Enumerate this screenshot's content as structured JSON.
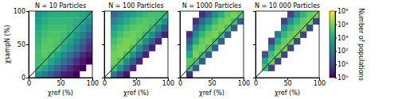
{
  "chart_data": [
    {
      "type": "heatmap",
      "title": "N = 10 Particles",
      "x_label": "χref (%)",
      "y_label": "χsampN (%)",
      "xlim": [
        0,
        100
      ],
      "ylim": [
        0,
        100
      ],
      "xticks": [
        0,
        50,
        100
      ],
      "yticks": [
        0,
        50,
        100
      ],
      "xbins": [
        0,
        10,
        20,
        30,
        40,
        50,
        60,
        70,
        80,
        90,
        100
      ],
      "ybins": [
        0,
        10,
        20,
        30,
        40,
        50,
        60,
        70,
        80,
        90,
        100
      ],
      "cells": [
        [
          null,
          300,
          100,
          30,
          10,
          3,
          2,
          1,
          null,
          null
        ],
        [
          null,
          2000,
          800,
          200,
          50,
          15,
          5,
          2,
          1,
          null
        ],
        [
          null,
          3000,
          3000,
          1000,
          300,
          80,
          20,
          5,
          2,
          1
        ],
        [
          null,
          3000,
          5000,
          3000,
          1000,
          300,
          80,
          20,
          5,
          2
        ],
        [
          null,
          2500,
          5000,
          5000,
          3000,
          1000,
          300,
          80,
          20,
          5
        ],
        [
          null,
          2000,
          4000,
          5000,
          4000,
          2000,
          800,
          200,
          50,
          10
        ],
        [
          null,
          1500,
          3000,
          4000,
          4000,
          3000,
          1500,
          500,
          150,
          30
        ],
        [
          null,
          1000,
          2000,
          3000,
          3000,
          3000,
          2000,
          1000,
          400,
          100
        ],
        [
          null,
          600,
          1200,
          2000,
          2000,
          2000,
          2000,
          1500,
          800,
          300
        ],
        [
          null,
          400,
          800,
          1200,
          1500,
          1500,
          1500,
          1500,
          1000,
          600
        ]
      ]
    },
    {
      "type": "heatmap",
      "title": "N = 100 Particles",
      "x_label": "χref (%)",
      "tick_labels": "x",
      "xlim": [
        0,
        100
      ],
      "ylim": [
        0,
        100
      ],
      "xticks": [
        0,
        50,
        100
      ],
      "yticks": [
        0,
        50,
        100
      ],
      "xbins": [
        0,
        10,
        20,
        30,
        40,
        50,
        60,
        70,
        80,
        90,
        100
      ],
      "ybins": [
        0,
        10,
        20,
        30,
        40,
        50,
        60,
        70,
        80,
        90,
        100
      ],
      "cells": [
        [
          null,
          100,
          10,
          2,
          null,
          null,
          null,
          null,
          null,
          null
        ],
        [
          null,
          3000,
          300,
          30,
          3,
          null,
          null,
          null,
          null,
          null
        ],
        [
          null,
          8000,
          3000,
          300,
          30,
          3,
          null,
          null,
          null,
          null
        ],
        [
          null,
          8000,
          10000,
          3000,
          300,
          30,
          3,
          null,
          null,
          null
        ],
        [
          null,
          5000,
          10000,
          10000,
          3000,
          300,
          30,
          3,
          null,
          null
        ],
        [
          null,
          3000,
          6000,
          10000,
          8000,
          3000,
          300,
          30,
          3,
          null
        ],
        [
          null,
          1500,
          3000,
          6000,
          8000,
          6000,
          2000,
          300,
          30,
          3
        ],
        [
          null,
          600,
          1500,
          3000,
          5000,
          6000,
          5000,
          2000,
          300,
          30
        ],
        [
          null,
          200,
          500,
          1200,
          2500,
          4000,
          5000,
          4000,
          2000,
          300
        ],
        [
          null,
          50,
          150,
          400,
          800,
          1500,
          2500,
          3000,
          3000,
          2000
        ]
      ]
    },
    {
      "type": "heatmap",
      "title": "N = 1000 Particles",
      "x_label": "χref (%)",
      "tick_labels": "x",
      "xlim": [
        0,
        100
      ],
      "ylim": [
        0,
        100
      ],
      "xticks": [
        0,
        50,
        100
      ],
      "yticks": [
        0,
        50,
        100
      ],
      "xbins": [
        0,
        10,
        20,
        30,
        40,
        50,
        60,
        70,
        80,
        90,
        100
      ],
      "ybins": [
        0,
        10,
        20,
        30,
        40,
        50,
        60,
        70,
        80,
        90,
        100
      ],
      "cells": [
        [
          null,
          5,
          null,
          null,
          null,
          null,
          null,
          null,
          null,
          null
        ],
        [
          null,
          3000,
          30,
          null,
          null,
          null,
          null,
          null,
          null,
          null
        ],
        [
          null,
          5000,
          3000,
          30,
          null,
          null,
          null,
          null,
          null,
          null
        ],
        [
          null,
          1000,
          10000,
          3000,
          30,
          null,
          null,
          null,
          null,
          null
        ],
        [
          null,
          200,
          5000,
          10000,
          3000,
          30,
          null,
          null,
          null,
          null
        ],
        [
          null,
          30,
          1000,
          6000,
          10000,
          3000,
          30,
          null,
          null,
          null
        ],
        [
          null,
          5,
          200,
          2000,
          6000,
          10000,
          3000,
          30,
          null,
          null
        ],
        [
          null,
          null,
          30,
          300,
          2000,
          6000,
          10000,
          3000,
          30,
          null
        ],
        [
          null,
          null,
          5,
          50,
          300,
          2000,
          6000,
          10000,
          3000,
          30
        ],
        [
          null,
          null,
          null,
          5,
          30,
          300,
          1500,
          5000,
          10000,
          5000
        ]
      ]
    },
    {
      "type": "heatmap",
      "title": "N = 10 000 Particles",
      "x_label": "χref (%)",
      "tick_labels": "x",
      "xlim": [
        0,
        100
      ],
      "ylim": [
        0,
        100
      ],
      "xticks": [
        0,
        50,
        100
      ],
      "yticks": [
        0,
        50,
        100
      ],
      "xbins": [
        0,
        10,
        20,
        30,
        40,
        50,
        60,
        70,
        80,
        90,
        100
      ],
      "ybins": [
        0,
        10,
        20,
        30,
        40,
        50,
        60,
        70,
        80,
        90,
        100
      ],
      "cells": [
        [
          null,
          null,
          null,
          null,
          null,
          null,
          null,
          null,
          null,
          null
        ],
        [
          null,
          3000,
          10,
          null,
          null,
          null,
          null,
          null,
          null,
          null
        ],
        [
          null,
          1000,
          8000,
          10,
          null,
          null,
          null,
          null,
          null,
          null
        ],
        [
          null,
          20,
          3000,
          10000,
          10,
          null,
          null,
          null,
          null,
          null
        ],
        [
          null,
          null,
          300,
          5000,
          10000,
          10,
          null,
          null,
          null,
          null
        ],
        [
          null,
          null,
          10,
          1000,
          6000,
          10000,
          10,
          null,
          null,
          null
        ],
        [
          null,
          null,
          null,
          100,
          2000,
          6000,
          10000,
          10,
          null,
          null
        ],
        [
          null,
          null,
          null,
          null,
          300,
          2000,
          6000,
          10000,
          10,
          null
        ],
        [
          null,
          null,
          null,
          null,
          10,
          300,
          2000,
          6000,
          10000,
          10
        ],
        [
          null,
          null,
          null,
          null,
          null,
          10,
          300,
          2000,
          6000,
          10000
        ]
      ],
      "color_range": [
        1,
        100000
      ],
      "color_ticks": [
        {
          "value": 1,
          "label": "10⁰"
        },
        {
          "value": 10,
          "label": "10¹"
        },
        {
          "value": 100,
          "label": "10²"
        },
        {
          "value": 1000,
          "label": "10³"
        },
        {
          "value": 10000,
          "label": "10⁴"
        },
        {
          "value": 100000,
          "label": "10⁵"
        }
      ],
      "colorbar_label": "Number of populations"
    }
  ]
}
